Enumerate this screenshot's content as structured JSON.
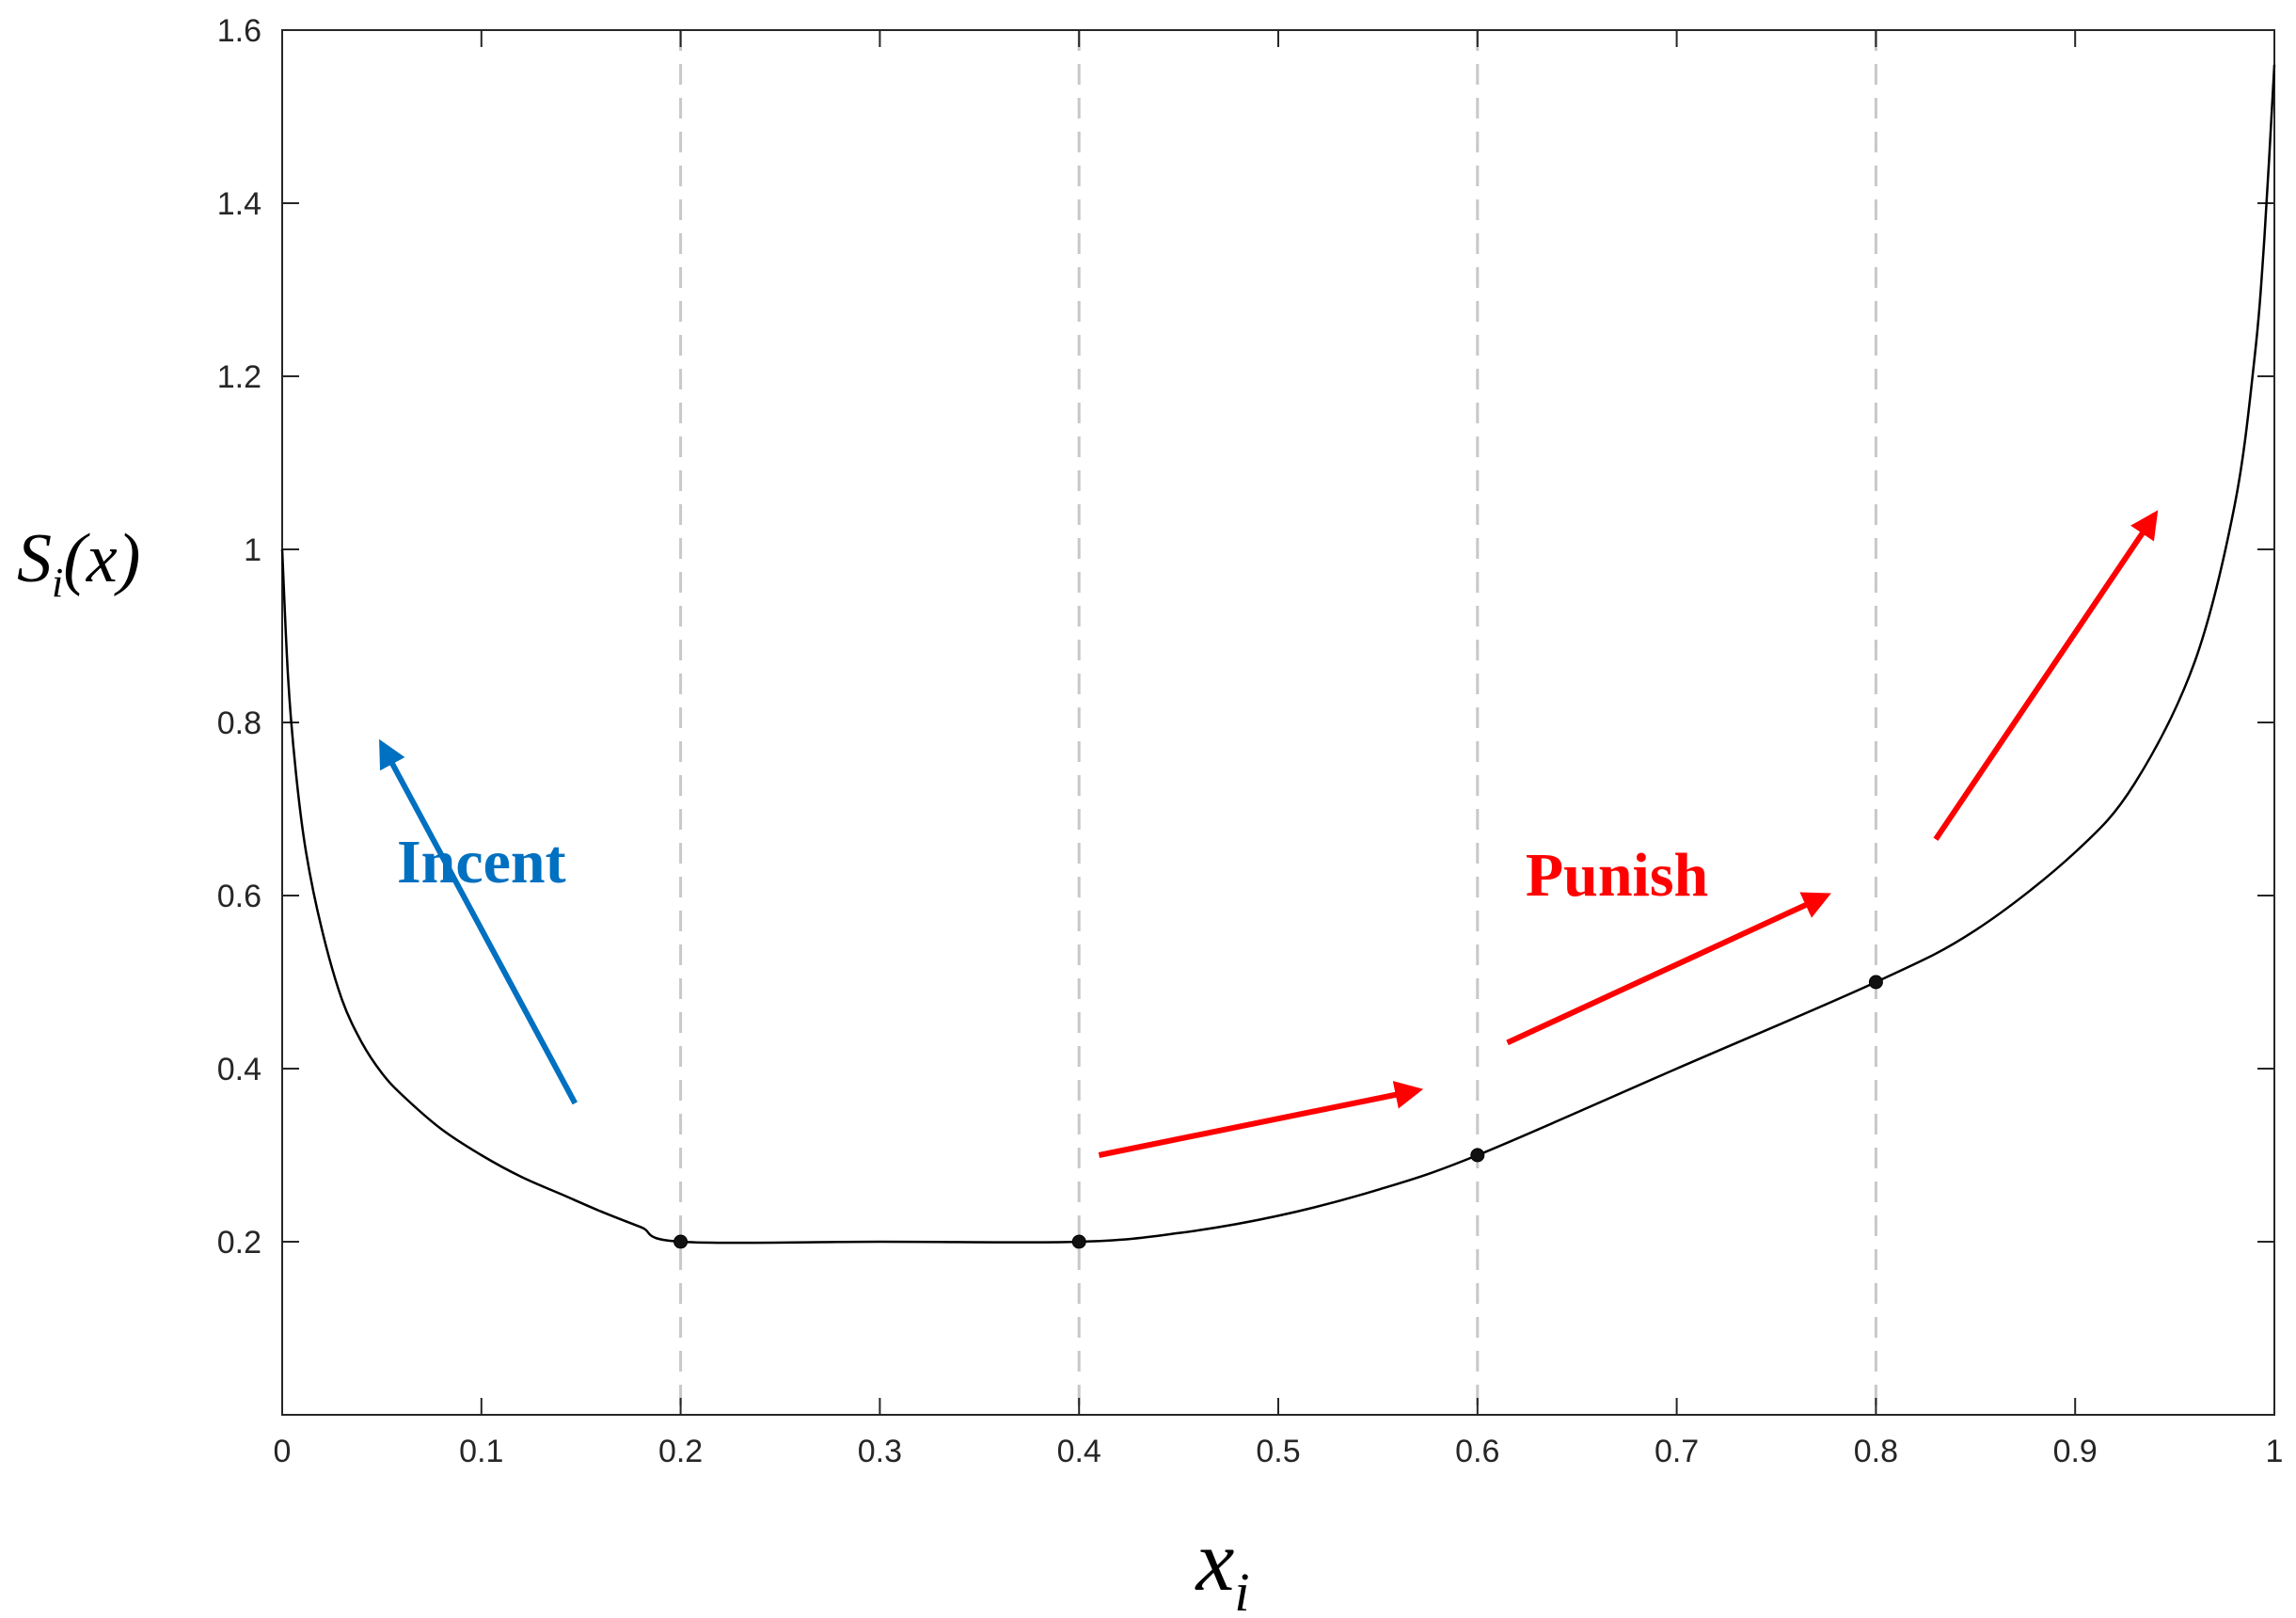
{
  "chart_data": {
    "type": "line",
    "title": "",
    "xlabel": "x",
    "xlabel_sub": "i",
    "ylabel_prefix": "S",
    "ylabel_sub": "i",
    "ylabel_suffix": "(x)",
    "xlim": [
      0,
      1
    ],
    "ylim": [
      0,
      1.6
    ],
    "xticks": [
      0,
      0.1,
      0.2,
      0.3,
      0.4,
      0.5,
      0.6,
      0.7,
      0.8,
      0.9,
      1
    ],
    "xtick_labels": [
      "0",
      "0.1",
      "0.2",
      "0.3",
      "0.4",
      "0.5",
      "0.6",
      "0.7",
      "0.8",
      "0.9",
      "1"
    ],
    "yticks": [
      0.2,
      0.4,
      0.6,
      0.8,
      1.0,
      1.2,
      1.4,
      1.6
    ],
    "ytick_labels": [
      "0.2",
      "0.4",
      "0.6",
      "0.8",
      "1",
      "1.2",
      "1.4",
      "1.6"
    ],
    "grid": false,
    "dashed_vlines": [
      0.2,
      0.4,
      0.6,
      0.8
    ],
    "series": [
      {
        "color": "#000000",
        "x": [
          0,
          0.003,
          0.007,
          0.012,
          0.02,
          0.03,
          0.04,
          0.05,
          0.06,
          0.08,
          0.1,
          0.12,
          0.14,
          0.16,
          0.18,
          0.2,
          0.3,
          0.4,
          0.45,
          0.5,
          0.55,
          0.6,
          0.7,
          0.8,
          0.85,
          0.9,
          0.93,
          0.96,
          0.98,
          0.99,
          0.995,
          1.0
        ],
        "y": [
          1.0,
          0.85,
          0.74,
          0.65,
          0.56,
          0.48,
          0.43,
          0.395,
          0.37,
          0.33,
          0.3,
          0.275,
          0.255,
          0.235,
          0.217,
          0.2,
          0.2,
          0.2,
          0.21,
          0.23,
          0.26,
          0.3,
          0.4,
          0.5,
          0.56,
          0.65,
          0.73,
          0.87,
          1.05,
          1.22,
          1.36,
          1.56
        ]
      }
    ],
    "markers": [
      {
        "x": 0.2,
        "y": 0.2
      },
      {
        "x": 0.4,
        "y": 0.2
      },
      {
        "x": 0.6,
        "y": 0.3
      },
      {
        "x": 0.8,
        "y": 0.5
      }
    ],
    "annotations": [
      {
        "text": "Incent",
        "color": "#0070c0",
        "x": 0.1,
        "y": 0.615
      }
    ],
    "annotation_labels": [
      {
        "text": "Punish",
        "color": "#ff0000",
        "x": 0.67,
        "y": 0.6
      }
    ],
    "arrows": [
      {
        "color": "#0070c0",
        "from": [
          0.147,
          0.36
        ],
        "to": [
          0.05,
          0.775
        ]
      },
      {
        "color": "#ff0000",
        "from": [
          0.41,
          0.3
        ],
        "to": [
          0.57,
          0.375
        ]
      },
      {
        "color": "#ff0000",
        "from": [
          0.615,
          0.43
        ],
        "to": [
          0.775,
          0.6
        ]
      },
      {
        "color": "#ff0000",
        "from": [
          0.83,
          0.665
        ],
        "to": [
          0.94,
          1.04
        ]
      }
    ]
  }
}
